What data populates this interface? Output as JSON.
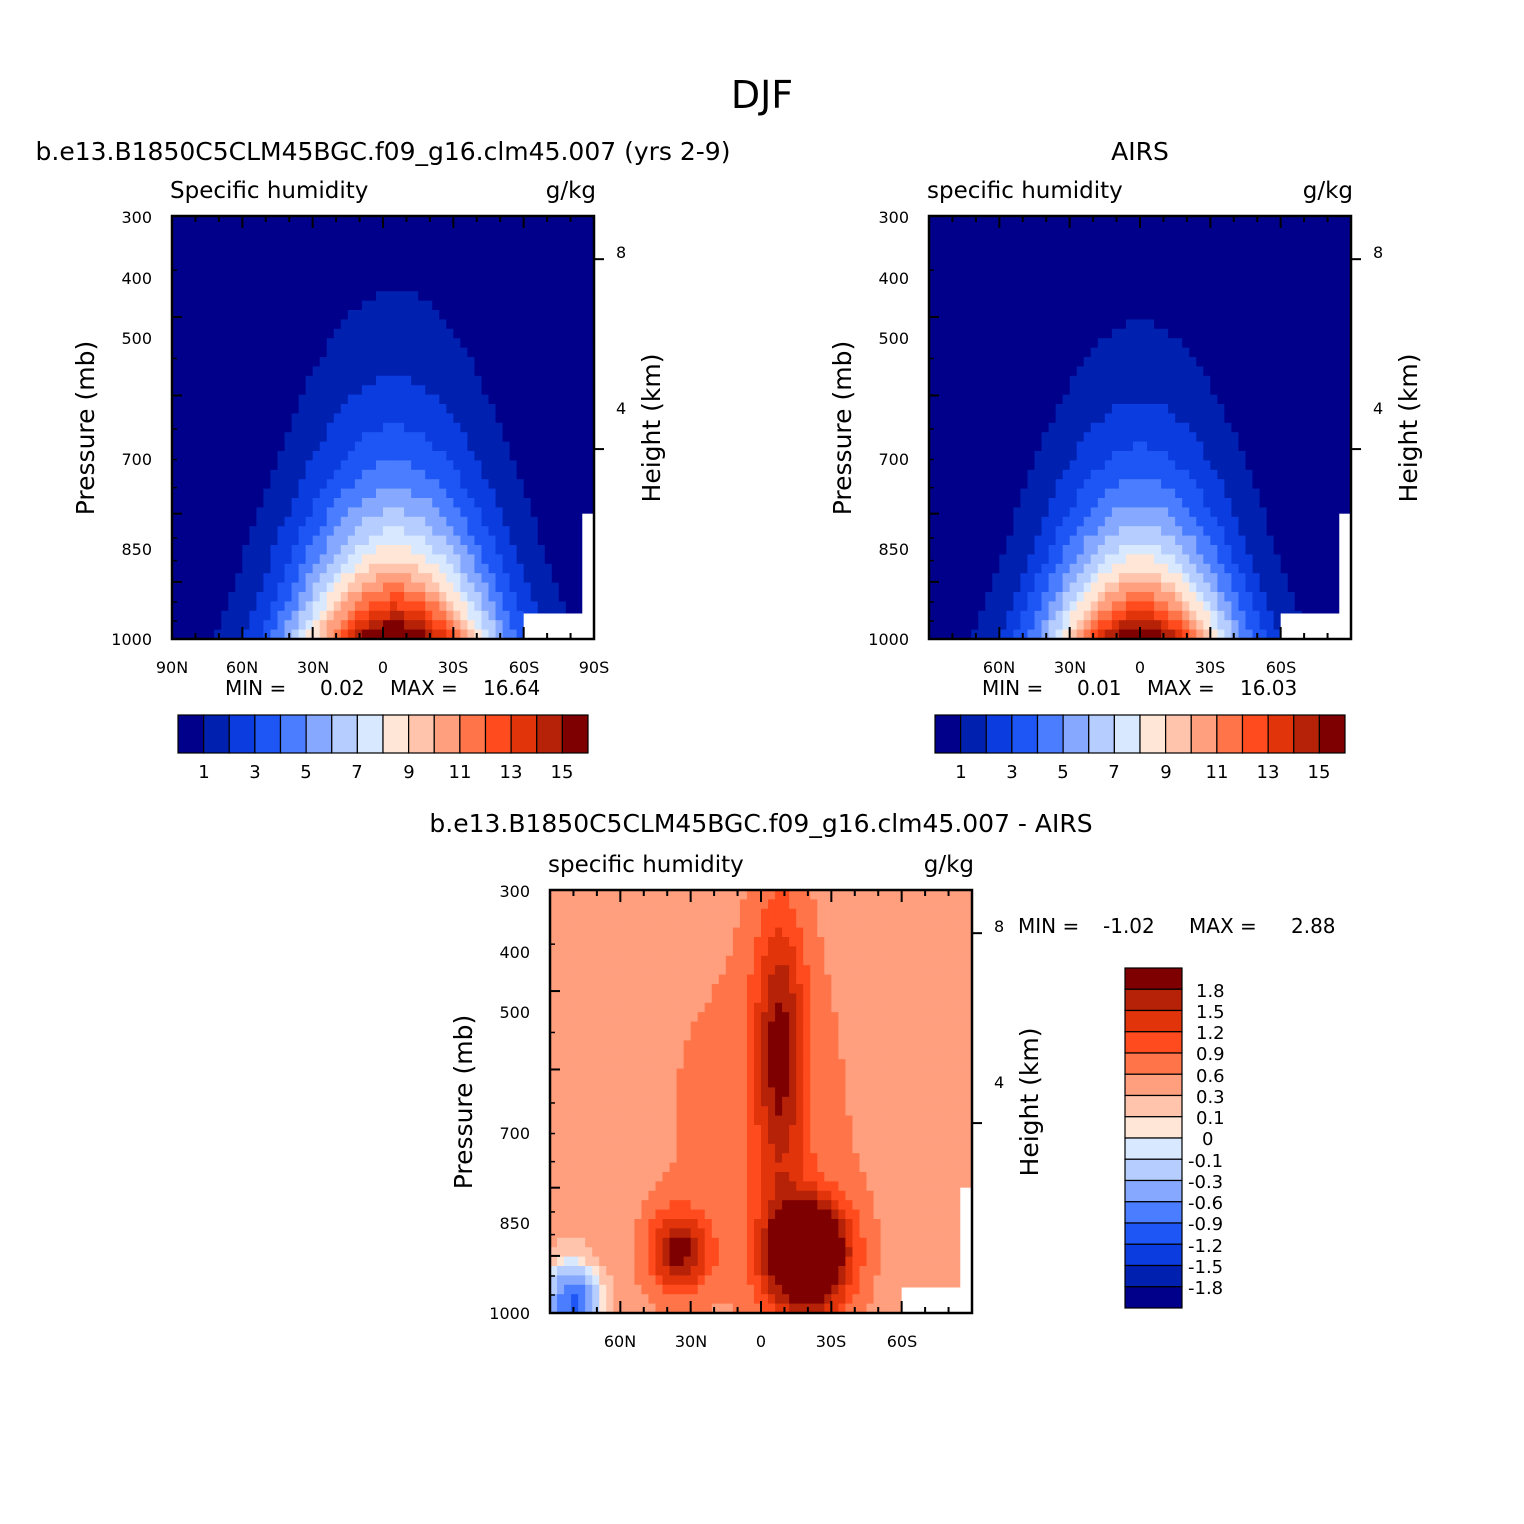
{
  "figure_title": "DJF",
  "colors": {
    "seq": [
      "#00008a",
      "#0020b0",
      "#0a3ce0",
      "#1e55f5",
      "#4a7dff",
      "#86a9ff",
      "#b6cdff",
      "#d8e8ff",
      "#ffe6d6",
      "#ffc4ab",
      "#ff9f7e",
      "#ff7448",
      "#ff4b1e",
      "#e2340a",
      "#b52208",
      "#7e0000"
    ],
    "div": [
      "#00008a",
      "#0020b0",
      "#0a3ce0",
      "#1e55f5",
      "#4a7dff",
      "#86a9ff",
      "#b6cdff",
      "#d8e8ff",
      "#ffe6d6",
      "#ffc4ab",
      "#ff9f7e",
      "#ff7448",
      "#ff4b1e",
      "#e2340a",
      "#b52208",
      "#7e0000"
    ]
  },
  "chart_data": [
    {
      "id": "model",
      "type": "heatmap",
      "title": "b.e13.B1850C5CLM45BGC.f09_g16.clm45.007 (yrs 2-9)",
      "left_label": "Specific humidity",
      "right_label": "g/kg",
      "ylabel": "Pressure (mb)",
      "y2label": "Height (km)",
      "pressure_ticks": [
        "300",
        "400",
        "500",
        "700",
        "850",
        "1000"
      ],
      "height_ticks": [
        "8",
        "4"
      ],
      "x_ticks": [
        "90N",
        "60N",
        "30N",
        "0",
        "30S",
        "60S",
        "90S"
      ],
      "xlim": [
        90,
        -90
      ],
      "ylim": [
        1000,
        300
      ],
      "min_label": "MIN =",
      "min_value": "0.02",
      "max_label": "MAX =",
      "max_value": "16.64",
      "colorbar_labels": [
        "1",
        "3",
        "5",
        "7",
        "9",
        "11",
        "13",
        "15"
      ],
      "field": {
        "peak_lat": -5,
        "peak_value": 16.64,
        "lat_width": 30,
        "scale_height_km": 2.6,
        "edge_top_km": 7.6
      }
    },
    {
      "id": "airs",
      "type": "heatmap",
      "title": "AIRS",
      "left_label": "specific humidity",
      "right_label": "g/kg",
      "ylabel": "Pressure (mb)",
      "y2label": "Height (km)",
      "pressure_ticks": [
        "300",
        "400",
        "500",
        "700",
        "850",
        "1000"
      ],
      "height_ticks": [
        "8",
        "4"
      ],
      "x_ticks": [
        "60N",
        "30N",
        "0",
        "30S",
        "60S"
      ],
      "xlim": [
        90,
        -90
      ],
      "ylim": [
        1000,
        300
      ],
      "min_label": "MIN =",
      "min_value": "0.01",
      "max_label": "MAX =",
      "max_value": "16.03",
      "colorbar_labels": [
        "1",
        "3",
        "5",
        "7",
        "9",
        "11",
        "13",
        "15"
      ],
      "field": {
        "peak_lat": 0,
        "peak_value": 16.03,
        "lat_width": 28,
        "scale_height_km": 2.4,
        "edge_top_km": 7.0
      }
    },
    {
      "id": "diff",
      "type": "heatmap",
      "title": "b.e13.B1850C5CLM45BGC.f09_g16.clm45.007 - AIRS",
      "left_label": "specific humidity",
      "right_label": "g/kg",
      "ylabel": "Pressure (mb)",
      "y2label": "Height (km)",
      "pressure_ticks": [
        "300",
        "400",
        "500",
        "700",
        "850",
        "1000"
      ],
      "height_ticks": [
        "8",
        "4"
      ],
      "x_ticks": [
        "60N",
        "30N",
        "0",
        "30S",
        "60S"
      ],
      "xlim": [
        90,
        -90
      ],
      "ylim": [
        1000,
        300
      ],
      "min_label": "MIN =",
      "min_value": "-1.02",
      "max_label": "MAX =",
      "max_value": "2.88",
      "colorbar_labels": [
        "1.8",
        "1.5",
        "1.2",
        "0.9",
        "0.6",
        "0.3",
        "0.1",
        "0",
        "-0.1",
        "-0.3",
        "-0.6",
        "-0.9",
        "-1.2",
        "-1.5",
        "-1.8"
      ],
      "field": {
        "peak_lat": -20,
        "peak_value": 2.88,
        "min_value": -1.02
      }
    }
  ]
}
